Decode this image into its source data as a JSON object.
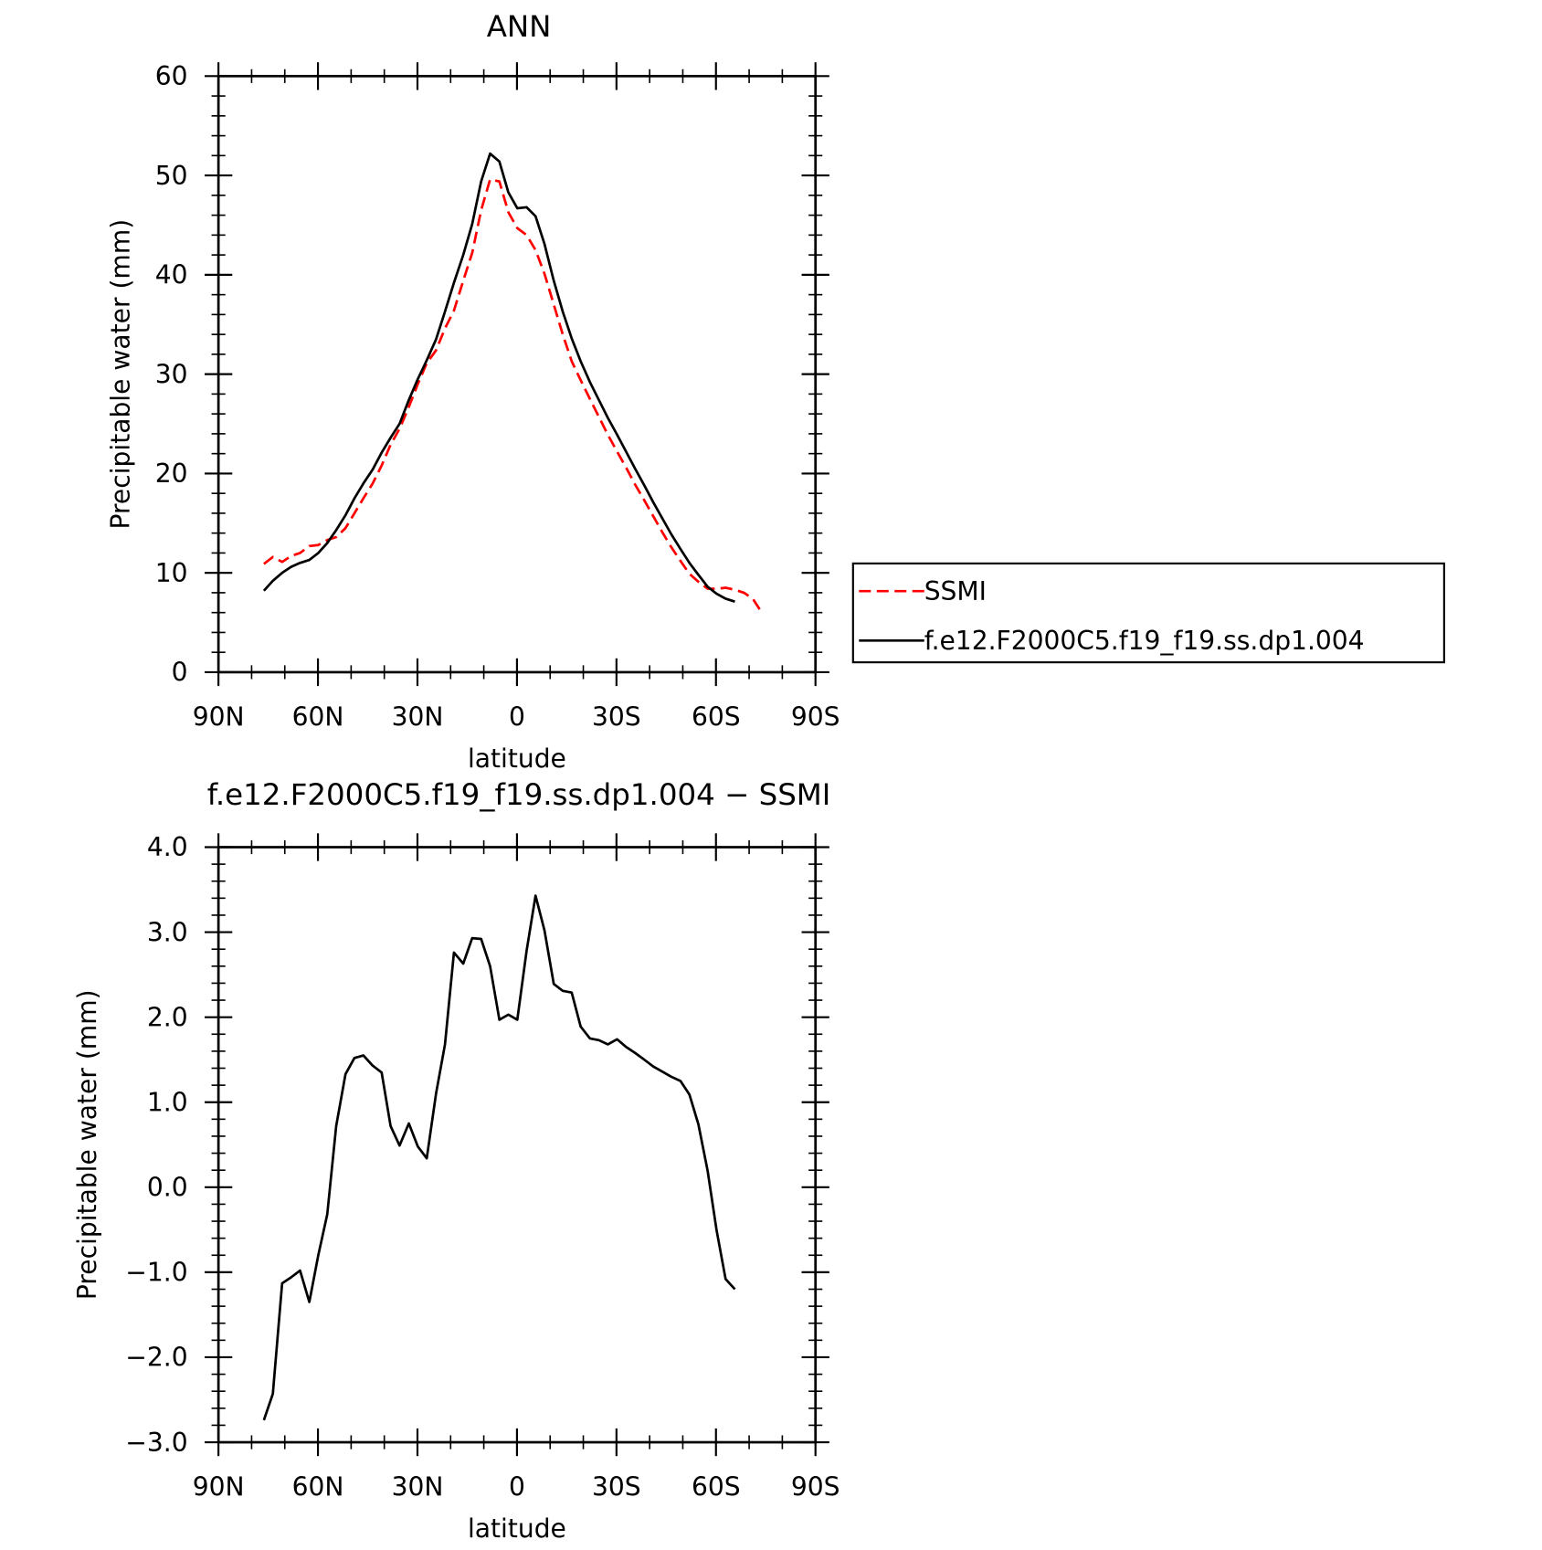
{
  "chart_data": [
    {
      "type": "line",
      "title": "ANN",
      "xlabel": "latitude",
      "ylabel": "Precipitable water (mm)",
      "x": [
        76.3,
        73.6,
        70.8,
        68.1,
        65.4,
        62.6,
        59.9,
        57.2,
        54.5,
        51.7,
        49.0,
        46.3,
        43.5,
        40.8,
        38.1,
        35.4,
        32.6,
        29.9,
        27.2,
        24.4,
        21.7,
        19.0,
        16.2,
        13.5,
        10.8,
        8.1,
        5.3,
        2.6,
        -0.1,
        -2.9,
        -5.6,
        -8.3,
        -11.1,
        -13.8,
        -16.5,
        -19.2,
        -22.0,
        -24.7,
        -27.4,
        -30.2,
        -32.9,
        -35.6,
        -38.4,
        -41.1,
        -43.8,
        -46.5,
        -49.3,
        -52.0,
        -54.7,
        -57.5,
        -60.2,
        -62.9,
        -65.7,
        -68.4,
        -71.1,
        -73.8
      ],
      "series": [
        {
          "name": "SSMI",
          "color": "#ff0000",
          "dash": true,
          "values": [
            10.9,
            11.6,
            11.1,
            11.7,
            12.0,
            12.7,
            12.8,
            13.3,
            13.6,
            14.5,
            16.0,
            17.5,
            19.0,
            20.8,
            22.9,
            24.5,
            26.7,
            29.0,
            31.1,
            32.4,
            34.6,
            36.4,
            39.4,
            42.2,
            46.5,
            49.6,
            49.4,
            46.3,
            44.7,
            44.0,
            42.5,
            40.1,
            37.0,
            34.0,
            31.3,
            29.4,
            27.5,
            25.7,
            23.9,
            22.2,
            20.6,
            18.9,
            17.3,
            15.7,
            14.1,
            12.6,
            11.2,
            9.9,
            9.1,
            8.4,
            8.4,
            8.5,
            8.3,
            8.0,
            7.4,
            6.0
          ]
        },
        {
          "name": "f.e12.F2000C5.f19_f19.ss.dp1.004",
          "color": "#000000",
          "dash": false,
          "values": [
            8.2,
            9.2,
            10.0,
            10.6,
            11.0,
            11.3,
            12.0,
            13.0,
            14.3,
            15.8,
            17.5,
            19.0,
            20.4,
            22.1,
            23.6,
            25.0,
            27.4,
            29.5,
            31.4,
            33.5,
            36.3,
            39.2,
            42.0,
            45.1,
            49.4,
            52.2,
            51.4,
            48.3,
            46.7,
            46.8,
            45.9,
            43.1,
            39.4,
            36.3,
            33.6,
            31.3,
            29.2,
            27.4,
            25.6,
            23.9,
            22.2,
            20.5,
            18.8,
            17.1,
            15.5,
            13.9,
            12.4,
            11.0,
            9.8,
            8.6,
            7.9,
            7.4,
            7.1,
            null,
            null,
            null
          ]
        }
      ],
      "xlim": [
        90,
        -90
      ],
      "xticks": [
        {
          "value": 90,
          "label": "90N"
        },
        {
          "value": 60,
          "label": "60N"
        },
        {
          "value": 30,
          "label": "30N"
        },
        0,
        {
          "value": -30,
          "label": "30S"
        },
        {
          "value": -60,
          "label": "60S"
        },
        {
          "value": -90,
          "label": "90S"
        }
      ],
      "ylim": [
        0,
        60
      ],
      "yticks": [
        0,
        10,
        20,
        30,
        40,
        50,
        60
      ],
      "legend": "right"
    },
    {
      "type": "line",
      "title": "f.e12.F2000C5.f19_f19.ss.dp1.004 − SSMI",
      "xlabel": "latitude",
      "ylabel": "Precipitable water (mm)",
      "x": [
        76.3,
        73.6,
        70.8,
        68.1,
        65.4,
        62.6,
        59.9,
        57.2,
        54.5,
        51.7,
        49.0,
        46.3,
        43.5,
        40.8,
        38.1,
        35.4,
        32.6,
        29.9,
        27.2,
        24.4,
        21.7,
        19.0,
        16.2,
        13.5,
        10.8,
        8.1,
        5.3,
        2.6,
        -0.1,
        -2.9,
        -5.6,
        -8.3,
        -11.1,
        -13.8,
        -16.5,
        -19.2,
        -22.0,
        -24.7,
        -27.4,
        -30.2,
        -32.9,
        -35.6,
        -38.4,
        -41.1,
        -43.8,
        -46.5,
        -49.3,
        -52.0,
        -54.7,
        -57.5,
        -60.2,
        -62.9,
        -65.7
      ],
      "series": [
        {
          "color": "#000000",
          "dash": false,
          "values": [
            -2.74,
            -2.43,
            -1.13,
            -1.06,
            -0.98,
            -1.35,
            -0.8,
            -0.32,
            0.72,
            1.33,
            1.52,
            1.55,
            1.43,
            1.35,
            0.72,
            0.49,
            0.75,
            0.48,
            0.34,
            1.1,
            1.68,
            2.76,
            2.63,
            2.93,
            2.92,
            2.6,
            1.97,
            2.03,
            1.97,
            2.78,
            3.43,
            3.02,
            2.39,
            2.31,
            2.29,
            1.89,
            1.75,
            1.73,
            1.68,
            1.74,
            1.65,
            1.58,
            1.5,
            1.42,
            1.36,
            1.3,
            1.25,
            1.09,
            0.74,
            0.19,
            -0.51,
            -1.08,
            -1.2
          ]
        }
      ],
      "xlim": [
        90,
        -90
      ],
      "xticks": [
        {
          "value": 90,
          "label": "90N"
        },
        {
          "value": 60,
          "label": "60N"
        },
        {
          "value": 30,
          "label": "30N"
        },
        0,
        {
          "value": -30,
          "label": "30S"
        },
        {
          "value": -60,
          "label": "60S"
        },
        {
          "value": -90,
          "label": "90S"
        }
      ],
      "ylim": [
        -3,
        4
      ],
      "yticks": [
        {
          "value": -3,
          "label": "−3.0"
        },
        {
          "value": -2,
          "label": "−2.0"
        },
        {
          "value": -1,
          "label": "−1.0"
        },
        {
          "value": 0,
          "label": "0.0"
        },
        {
          "value": 1,
          "label": "1.0"
        },
        {
          "value": 2,
          "label": "2.0"
        },
        {
          "value": 3,
          "label": "3.0"
        },
        {
          "value": 4,
          "label": "4.0"
        }
      ]
    }
  ]
}
